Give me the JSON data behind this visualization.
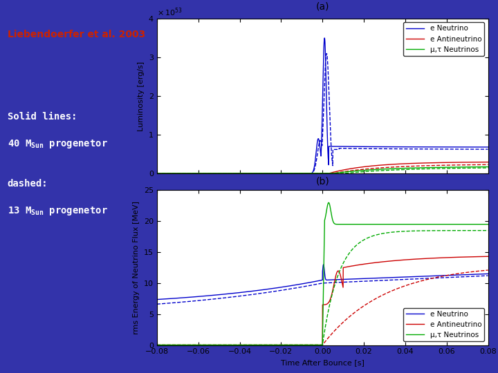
{
  "title": "Liebendoerfer et al. 2003",
  "title_color": "#CC2200",
  "bg_color": "#3333AA",
  "plot_bg": "#FFFFFF",
  "text_color": "#FFFFFF",
  "panel_a_label": "(a)",
  "panel_b_label": "(b)",
  "xlim": [
    -0.08,
    0.08
  ],
  "xticks": [
    -0.08,
    -0.06,
    -0.04,
    -0.02,
    0,
    0.02,
    0.04,
    0.06,
    0.08
  ],
  "xlabel": "Time After Bounce [s]",
  "ylabel_a": "Luminosity [erg/s]",
  "ylabel_b": "rms Energy of Neutrino Flux [MeV]",
  "ylim_a": [
    0,
    4
  ],
  "ylim_b": [
    0,
    25
  ],
  "yticks_a": [
    0,
    1,
    2,
    3,
    4
  ],
  "yticks_b": [
    0,
    5,
    10,
    15,
    20,
    25
  ],
  "colors": {
    "e_neutrino": "#0000CC",
    "e_antineutrino": "#CC0000",
    "mu_tau": "#00AA00"
  },
  "legend_labels_a": [
    "e Neutrino",
    "e Antineutrino",
    "μ,τ Neutrinos"
  ],
  "legend_labels_b": [
    "e Neutrino",
    "e Antineutrino",
    "μ,τ Neutrinos"
  ]
}
